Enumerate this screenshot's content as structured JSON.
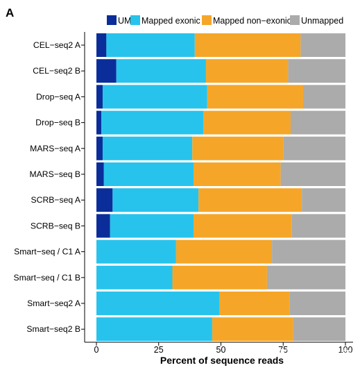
{
  "figure": {
    "panel_label": "A",
    "watermark": "知乎 @望圣生物"
  },
  "legend": {
    "items": [
      {
        "key": "umi",
        "label": "UMI"
      },
      {
        "key": "mapped_exonic",
        "label": "Mapped exonic"
      },
      {
        "key": "mapped_non_exonic",
        "label": "Mapped non−exonic"
      },
      {
        "key": "unmapped",
        "label": "Unmapped"
      }
    ]
  },
  "colors": {
    "umi": "#0B2D9A",
    "mapped_exonic": "#27C3EC",
    "mapped_non_exonic": "#F5A628",
    "unmapped": "#ABABAB",
    "axis": "#000000"
  },
  "chart_data": {
    "type": "bar",
    "orientation": "horizontal",
    "stacked": true,
    "xlabel": "Percent of sequence reads",
    "ylabel": "",
    "xlim": [
      0,
      100
    ],
    "xticks": [
      0,
      25,
      50,
      75,
      100
    ],
    "grid": false,
    "legend_position": "top",
    "categories": [
      "CEL−seq2 A",
      "CEL−seq2 B",
      "Drop−seq A",
      "Drop−seq B",
      "MARS−seq A",
      "MARS−seq B",
      "SCRB−seq A",
      "SCRB−seq B",
      "Smart−seq / C1 A",
      "Smart−seq / C1 B",
      "Smart−seq2 A",
      "Smart−seq2 B"
    ],
    "series": [
      {
        "key": "umi",
        "name": "UMI",
        "values": [
          4,
          8,
          2.5,
          2,
          2.5,
          3,
          6.5,
          5.5,
          0,
          0,
          0,
          0
        ]
      },
      {
        "key": "mapped_exonic",
        "name": "Mapped exonic",
        "values": [
          35.5,
          36,
          42,
          41,
          36,
          36,
          34.5,
          33.5,
          32,
          30.5,
          49.5,
          46.5
        ]
      },
      {
        "key": "mapped_non_exonic",
        "name": "Mapped non−exonic",
        "values": [
          42.5,
          33,
          38.5,
          35,
          36.5,
          35,
          41.5,
          39.5,
          38.5,
          38,
          28,
          32.5
        ]
      },
      {
        "key": "unmapped",
        "name": "Unmapped",
        "values": [
          18,
          23,
          17,
          22,
          25,
          26,
          17.5,
          21.5,
          29.5,
          31.5,
          22.5,
          21
        ]
      }
    ]
  }
}
